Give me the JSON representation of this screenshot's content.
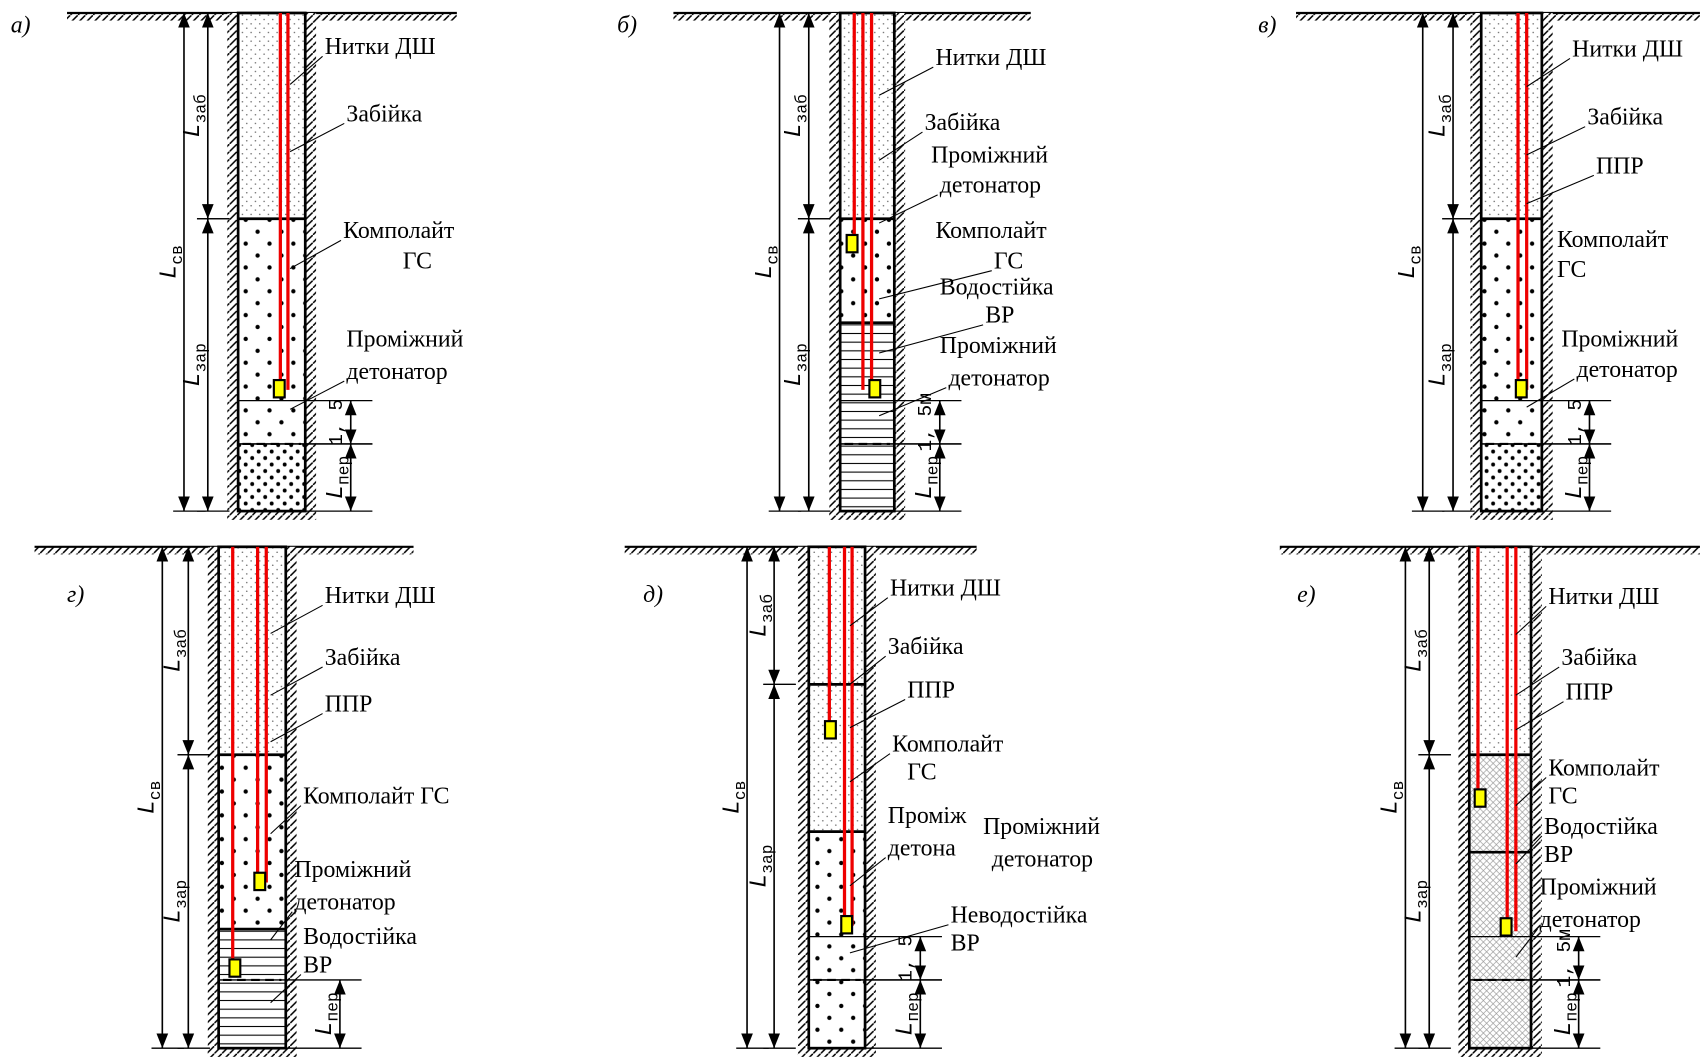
{
  "panels": [
    {
      "label": "а)",
      "texts": [
        "Нитки ДШ",
        "Забійка",
        "Комполайт",
        "ГС",
        "Проміжний",
        "детонатор"
      ],
      "dims": [
        {
          "base": "L",
          "sub": "св"
        },
        {
          "base": "L",
          "sub": "заб"
        },
        {
          "base": "L",
          "sub": "зар"
        },
        {
          "base": "1, 5"
        },
        {
          "base": "L",
          "sub": "пер"
        }
      ]
    },
    {
      "label": "б)",
      "texts": [
        "Нитки ДШ",
        "Забійка",
        "Проміжний",
        "детонатор",
        "Комполайт",
        "ГС",
        "Водостійка",
        "ВР",
        "Проміжний",
        "детонатор"
      ],
      "dims": [
        {
          "base": "L",
          "sub": "св"
        },
        {
          "base": "L",
          "sub": "заб"
        },
        {
          "base": "L",
          "sub": "зар"
        },
        {
          "base": "1, 5м"
        },
        {
          "base": "L",
          "sub": "пер"
        }
      ]
    },
    {
      "label": "в)",
      "texts": [
        "Нитки ДШ",
        "Забійка",
        "ППР",
        "Комполайт",
        "ГС",
        "Проміжний",
        "детонатор"
      ],
      "dims": [
        {
          "base": "L",
          "sub": "заб"
        },
        {
          "base": "L",
          "sub": "св"
        },
        {
          "base": "L",
          "sub": "зар"
        },
        {
          "base": "1, 5"
        },
        {
          "base": "L",
          "sub": "пер"
        }
      ]
    },
    {
      "label": "г)",
      "texts": [
        "Нитки  ДШ",
        "Забійка",
        "ППР",
        "Комполайт ГС",
        "Проміжний",
        "детонатор",
        "Водостійка",
        "ВР"
      ],
      "dims": [
        {
          "base": "L",
          "sub": "св"
        },
        {
          "base": "L",
          "sub": "заб"
        },
        {
          "base": "L",
          "sub": "зар"
        },
        {
          "base": "L",
          "sub": "пер"
        }
      ]
    },
    {
      "label": "д)",
      "texts": [
        "Нитки ДШ",
        "Забійка",
        "ППР",
        "Комполайт",
        "ГС",
        "Проміж",
        "детона",
        "Проміжний",
        "детонатор",
        "Неводостійка",
        "ВР"
      ],
      "dims": [
        {
          "base": "L",
          "sub": "заб"
        },
        {
          "base": "L",
          "sub": "св"
        },
        {
          "base": "L",
          "sub": "зар"
        },
        {
          "base": "1, 5"
        },
        {
          "base": "L",
          "sub": "пер"
        }
      ]
    },
    {
      "label": "е)",
      "texts": [
        "Нитки ДШ",
        "Забійка",
        "ППР",
        "Комполайт",
        "ГС",
        "Водостійка",
        "ВР",
        "Проміжний",
        "детонатор"
      ],
      "dims": [
        {
          "base": "L",
          "sub": "заб"
        },
        {
          "base": "L",
          "sub": "св"
        },
        {
          "base": "L",
          "sub": "зар"
        },
        {
          "base": "1, 5м"
        },
        {
          "base": "L",
          "sub": "пер"
        }
      ]
    }
  ]
}
